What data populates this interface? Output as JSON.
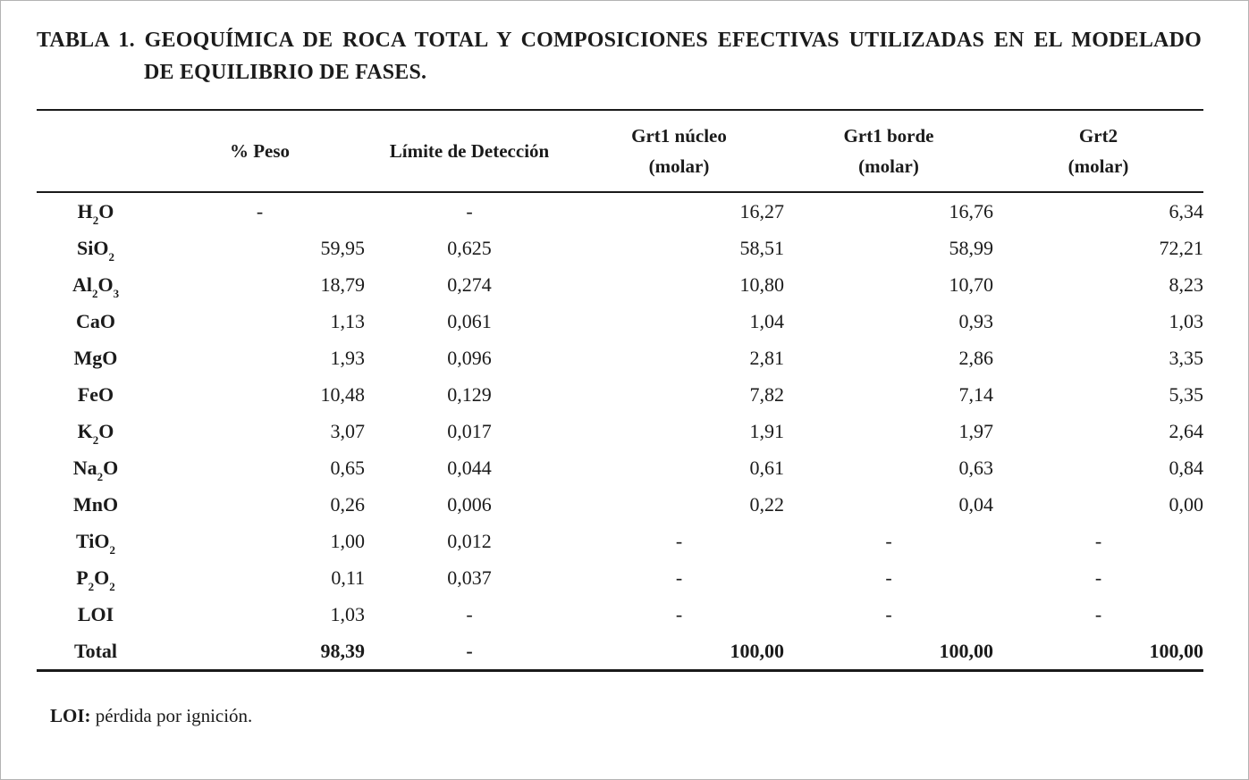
{
  "title": {
    "label": "TABLA 1.",
    "line1_rest": "GEOQUÍMICA DE ROCA TOTAL Y COMPOSICIONES EFECTIVAS UTILIZADAS EN EL MODELADO",
    "line2": "DE EQUILIBRIO DE FASES."
  },
  "table": {
    "columns": [
      {
        "label": "",
        "sublabel": ""
      },
      {
        "label": "% Peso",
        "sublabel": ""
      },
      {
        "label": "Límite de Detección",
        "sublabel": ""
      },
      {
        "label": "Grt1 núcleo",
        "sublabel": "(molar)"
      },
      {
        "label": "Grt1 borde",
        "sublabel": "(molar)"
      },
      {
        "label": "Grt2",
        "sublabel": "(molar)"
      }
    ],
    "rows": [
      {
        "formula": [
          "H",
          {
            "sub": "2"
          },
          "O"
        ],
        "values": [
          "-",
          "-",
          "16,27",
          "16,76",
          "6,34"
        ],
        "bold": false
      },
      {
        "formula": [
          "SiO",
          {
            "sub": "2"
          }
        ],
        "values": [
          "59,95",
          "0,625",
          "58,51",
          "58,99",
          "72,21"
        ],
        "bold": false
      },
      {
        "formula": [
          "Al",
          {
            "sub": "2"
          },
          "O",
          {
            "sub": "3"
          }
        ],
        "values": [
          "18,79",
          "0,274",
          "10,80",
          "10,70",
          "8,23"
        ],
        "bold": false
      },
      {
        "formula": [
          "CaO"
        ],
        "values": [
          "1,13",
          "0,061",
          "1,04",
          "0,93",
          "1,03"
        ],
        "bold": false
      },
      {
        "formula": [
          "MgO"
        ],
        "values": [
          "1,93",
          "0,096",
          "2,81",
          "2,86",
          "3,35"
        ],
        "bold": false
      },
      {
        "formula": [
          "FeO"
        ],
        "values": [
          "10,48",
          "0,129",
          "7,82",
          "7,14",
          "5,35"
        ],
        "bold": false
      },
      {
        "formula": [
          "K",
          {
            "sub": "2"
          },
          "O"
        ],
        "values": [
          "3,07",
          "0,017",
          "1,91",
          "1,97",
          "2,64"
        ],
        "bold": false
      },
      {
        "formula": [
          "Na",
          {
            "sub": "2"
          },
          "O"
        ],
        "values": [
          "0,65",
          "0,044",
          "0,61",
          "0,63",
          "0,84"
        ],
        "bold": false
      },
      {
        "formula": [
          "MnO"
        ],
        "values": [
          "0,26",
          "0,006",
          "0,22",
          "0,04",
          "0,00"
        ],
        "bold": false
      },
      {
        "formula": [
          "TiO",
          {
            "sub": "2"
          }
        ],
        "values": [
          "1,00",
          "0,012",
          "-",
          "-",
          "-"
        ],
        "bold": false
      },
      {
        "formula": [
          "P",
          {
            "sub": "2"
          },
          "O",
          {
            "sub": "2"
          }
        ],
        "values": [
          "0,11",
          "0,037",
          "-",
          "-",
          "-"
        ],
        "bold": false
      },
      {
        "formula": [
          "LOI"
        ],
        "values": [
          "1,03",
          "-",
          "-",
          "-",
          "-"
        ],
        "bold": false
      },
      {
        "formula": [
          "Total"
        ],
        "values": [
          "98,39",
          "-",
          "100,00",
          "100,00",
          "100,00"
        ],
        "bold": true
      }
    ]
  },
  "footnote": {
    "term": "LOI:",
    "text": " pérdida por ignición."
  }
}
